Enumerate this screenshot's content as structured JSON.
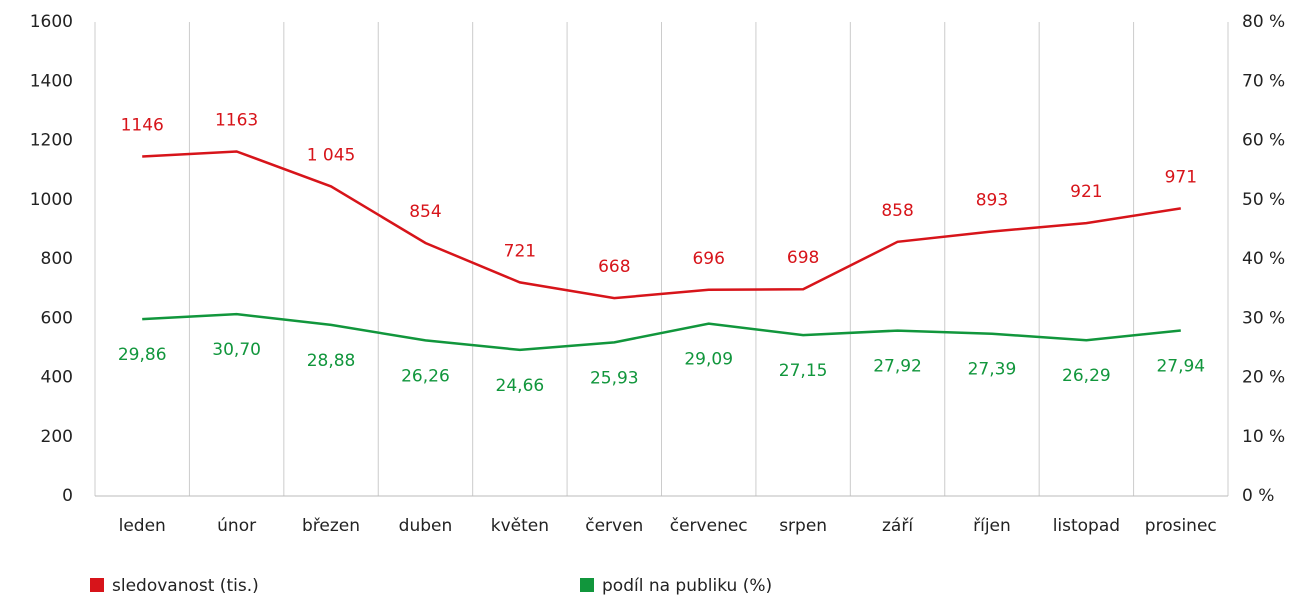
{
  "chart_data": {
    "type": "line",
    "categories": [
      "leden",
      "únor",
      "březen",
      "duben",
      "květen",
      "červen",
      "červenec",
      "srpen",
      "září",
      "říjen",
      "listopad",
      "prosinec"
    ],
    "series": [
      {
        "name": "sledovanost (tis.)",
        "color": "#d7141a",
        "axis": "y",
        "values": [
          1146,
          1163,
          1045,
          854,
          721,
          668,
          696,
          698,
          858,
          893,
          921,
          971
        ],
        "value_labels": [
          "1146",
          "1163",
          "1 045",
          "854",
          "721",
          "668",
          "696",
          "698",
          "858",
          "893",
          "921",
          "971"
        ]
      },
      {
        "name": "podíl na publiku (%)",
        "color": "#11963c",
        "axis": "y2",
        "values": [
          29.86,
          30.7,
          28.88,
          26.26,
          24.66,
          25.93,
          29.09,
          27.15,
          27.92,
          27.39,
          26.29,
          27.94
        ],
        "value_labels": [
          "29,86",
          "30,70",
          "28,88",
          "26,26",
          "24,66",
          "25,93",
          "29,09",
          "27,15",
          "27,92",
          "27,39",
          "26,29",
          "27,94"
        ]
      }
    ],
    "ylim": [
      0,
      1600
    ],
    "yticks": [
      0,
      200,
      400,
      600,
      800,
      1000,
      1200,
      1400,
      1600
    ],
    "y2lim": [
      0,
      80
    ],
    "y2ticks": [
      {
        "value": 0,
        "label": "0 %"
      },
      {
        "value": 10,
        "label": "10 %"
      },
      {
        "value": 20,
        "label": "20 %"
      },
      {
        "value": 30,
        "label": "30 %"
      },
      {
        "value": 40,
        "label": "40 %"
      },
      {
        "value": 50,
        "label": "50 %"
      },
      {
        "value": 60,
        "label": "60 %"
      },
      {
        "value": 70,
        "label": "70 %"
      },
      {
        "value": 80,
        "label": "80 %"
      }
    ],
    "legend": "bottom"
  }
}
